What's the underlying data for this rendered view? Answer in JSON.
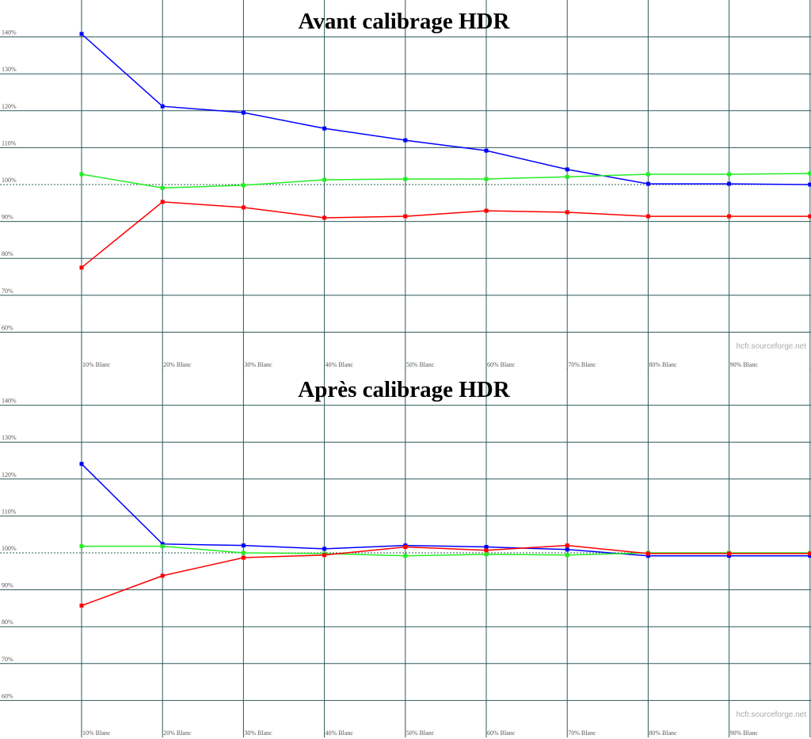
{
  "chart_data": [
    {
      "type": "line",
      "title": "Avant calibrage HDR",
      "watermark": "hcfr.sourceforge.net",
      "categories": [
        "10% Blanc",
        "20% Blanc",
        "30% Blanc",
        "40% Blanc",
        "50% Blanc",
        "60% Blanc",
        "70% Blanc",
        "80% Blanc",
        "90% Blanc",
        null
      ],
      "series": [
        {
          "color": "#0000ff",
          "values": [
            140.8,
            121.2,
            119.5,
            115.2,
            112.0,
            109.2,
            104.1,
            100.2,
            100.2,
            100.0
          ]
        },
        {
          "color": "#22ee22",
          "values": [
            102.8,
            99.1,
            99.8,
            101.3,
            101.5,
            101.5,
            102.1,
            102.8,
            102.8,
            103.0
          ]
        },
        {
          "color": "#ff0000",
          "values": [
            77.5,
            95.3,
            93.8,
            91.0,
            91.4,
            92.9,
            92.5,
            91.4,
            91.4,
            91.4
          ]
        }
      ],
      "ylim": [
        50,
        150
      ],
      "yticks": [
        {
          "value": 60,
          "label": "60%"
        },
        {
          "value": 70,
          "label": "70%"
        },
        {
          "value": 80,
          "label": "80%"
        },
        {
          "value": 90,
          "label": "90%"
        },
        {
          "value": 100,
          "label": "100%"
        },
        {
          "value": 110,
          "label": "110%"
        },
        {
          "value": 120,
          "label": "120%"
        },
        {
          "value": 130,
          "label": "130%"
        },
        {
          "value": 140,
          "label": "140%"
        }
      ],
      "reference_line": 100,
      "grid": true
    },
    {
      "type": "line",
      "title": "Après calibrage HDR",
      "watermark": "hcfr.sourceforge.net",
      "categories": [
        "10% Blanc",
        "20% Blanc",
        "30% Blanc",
        "40% Blanc",
        "50% Blanc",
        "60% Blanc",
        "70% Blanc",
        "80% Blanc",
        "90% Blanc",
        null
      ],
      "series": [
        {
          "color": "#0000ff",
          "values": [
            124.1,
            102.4,
            102.0,
            101.1,
            102.0,
            101.6,
            100.9,
            99.2,
            99.2,
            99.2
          ]
        },
        {
          "color": "#22ee22",
          "values": [
            101.8,
            101.8,
            100.0,
            99.8,
            99.2,
            99.6,
            99.4,
            100.0,
            100.0,
            100.0
          ]
        },
        {
          "color": "#ff0000",
          "values": [
            85.7,
            93.8,
            98.7,
            99.4,
            101.6,
            100.7,
            102.0,
            99.8,
            99.8,
            99.8
          ]
        }
      ],
      "ylim": [
        50,
        150
      ],
      "yticks": [
        {
          "value": 60,
          "label": "60%"
        },
        {
          "value": 70,
          "label": "70%"
        },
        {
          "value": 80,
          "label": "80%"
        },
        {
          "value": 90,
          "label": "90%"
        },
        {
          "value": 100,
          "label": "100%"
        },
        {
          "value": 110,
          "label": "110%"
        },
        {
          "value": 120,
          "label": "120%"
        },
        {
          "value": 130,
          "label": "130%"
        },
        {
          "value": 140,
          "label": "140%"
        }
      ],
      "reference_line": 100,
      "grid": true
    }
  ]
}
